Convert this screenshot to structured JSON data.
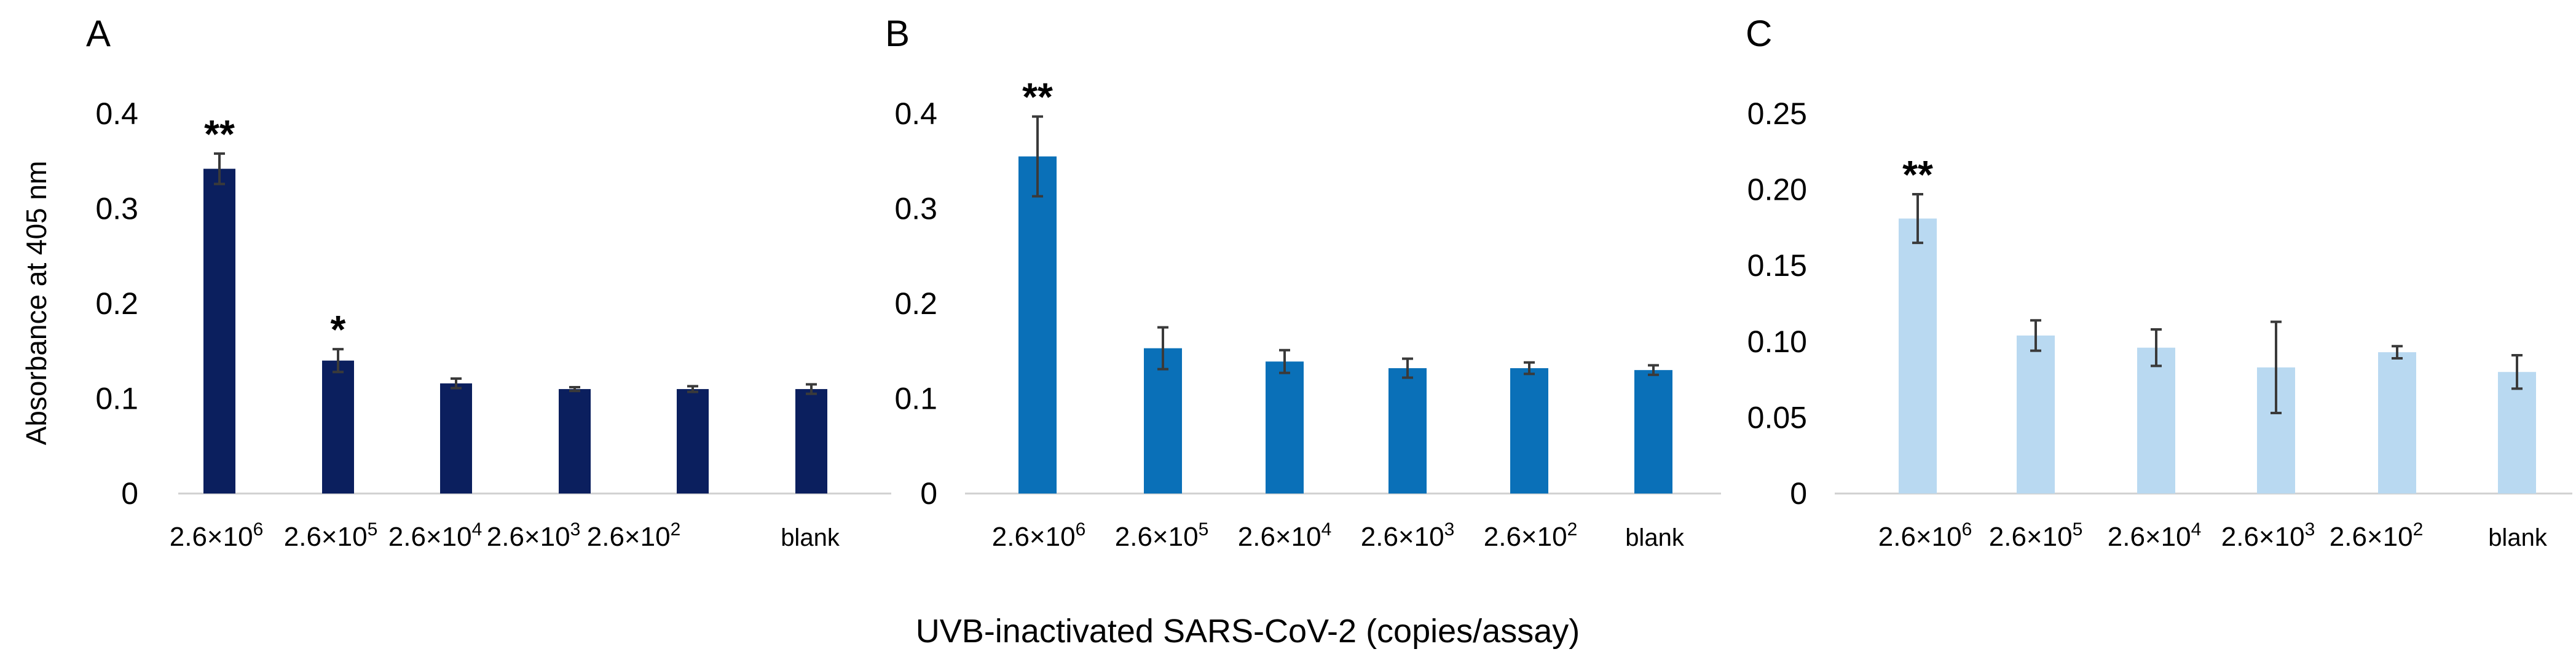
{
  "figure": {
    "xlabel": "UVB-inactivated SARS-CoV-2 (copies/assay)",
    "ylabel": "Absorbance at 405 nm"
  },
  "chart_data": [
    {
      "type": "bar",
      "panel_label": "A",
      "color": "#0b1f5e",
      "ylim": [
        0,
        0.4
      ],
      "yticks": [
        "0",
        "0.1",
        "0.2",
        "0.3",
        "0.4"
      ],
      "categories": [
        {
          "base": "2.6×10",
          "exp": "6"
        },
        {
          "base": "2.6×10",
          "exp": "5"
        },
        {
          "base": "2.6×10",
          "exp": "4"
        },
        {
          "base": "2.6×10",
          "exp": "3"
        },
        {
          "base": "2.6×10",
          "exp": "2"
        },
        {
          "base": "blank",
          "exp": ""
        }
      ],
      "values": [
        0.342,
        0.14,
        0.116,
        0.11,
        0.11,
        0.11
      ],
      "errors": [
        0.016,
        0.012,
        0.005,
        0.002,
        0.003,
        0.005
      ],
      "significance": [
        "**",
        "*",
        "",
        "",
        "",
        ""
      ],
      "grid": false,
      "legend": "none"
    },
    {
      "type": "bar",
      "panel_label": "B",
      "color": "#0a70b8",
      "ylim": [
        0,
        0.4
      ],
      "yticks": [
        "0",
        "0.1",
        "0.2",
        "0.3",
        "0.4"
      ],
      "categories": [
        {
          "base": "2.6×10",
          "exp": "6"
        },
        {
          "base": "2.6×10",
          "exp": "5"
        },
        {
          "base": "2.6×10",
          "exp": "4"
        },
        {
          "base": "2.6×10",
          "exp": "3"
        },
        {
          "base": "2.6×10",
          "exp": "2"
        },
        {
          "base": "blank",
          "exp": ""
        }
      ],
      "values": [
        0.355,
        0.153,
        0.139,
        0.132,
        0.132,
        0.13
      ],
      "errors": [
        0.042,
        0.022,
        0.012,
        0.01,
        0.006,
        0.005
      ],
      "significance": [
        "**",
        "",
        "",
        "",
        "",
        ""
      ],
      "grid": false,
      "legend": "none"
    },
    {
      "type": "bar",
      "panel_label": "C",
      "color": "#b9d9f1",
      "ylim": [
        0,
        0.25
      ],
      "yticks": [
        "0",
        "0.05",
        "0.10",
        "0.15",
        "0.20",
        "0.25"
      ],
      "categories": [
        {
          "base": "2.6×10",
          "exp": "6"
        },
        {
          "base": "2.6×10",
          "exp": "5"
        },
        {
          "base": "2.6×10",
          "exp": "4"
        },
        {
          "base": "2.6×10",
          "exp": "3"
        },
        {
          "base": "2.6×10",
          "exp": "2"
        },
        {
          "base": "blank",
          "exp": ""
        }
      ],
      "values": [
        0.181,
        0.104,
        0.096,
        0.083,
        0.093,
        0.08
      ],
      "errors": [
        0.016,
        0.01,
        0.012,
        0.03,
        0.004,
        0.011
      ],
      "significance": [
        "**",
        "",
        "",
        "",
        "",
        ""
      ],
      "grid": false,
      "legend": "none"
    }
  ]
}
